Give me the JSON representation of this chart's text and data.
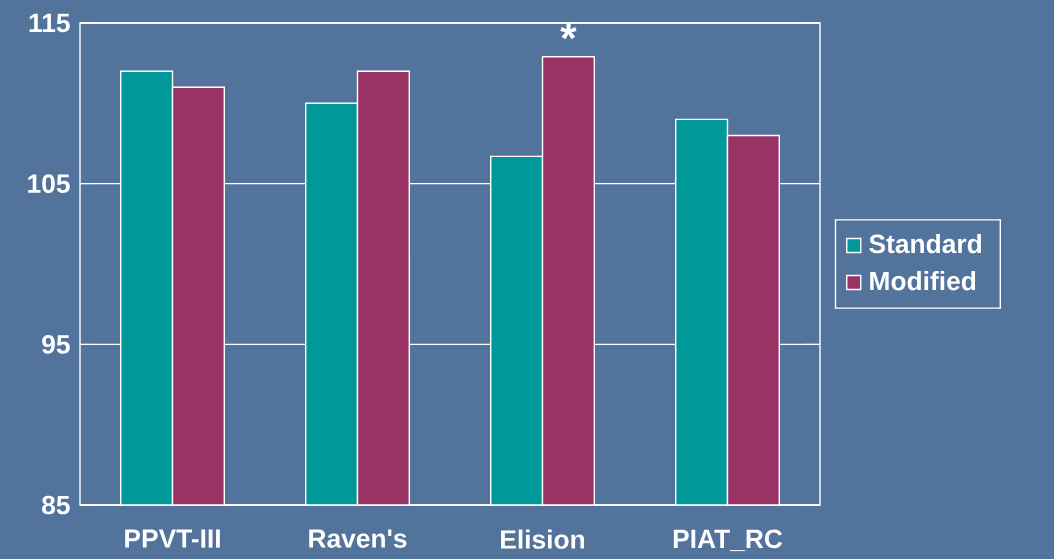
{
  "chart_data": {
    "type": "bar",
    "categories": [
      "PPVT-III",
      "Raven's",
      "Elision",
      "PIAT_RC"
    ],
    "series": [
      {
        "name": "Standard",
        "color": "#009999",
        "values": [
          112,
          110,
          106.7,
          109
        ]
      },
      {
        "name": "Modified",
        "color": "#993366",
        "values": [
          111,
          112,
          112.9,
          108
        ]
      }
    ],
    "ylim": [
      85,
      115
    ],
    "yticks": [
      85,
      95,
      105,
      115
    ],
    "grid": "y",
    "legend": "right",
    "annotations": [
      "*"
    ]
  }
}
